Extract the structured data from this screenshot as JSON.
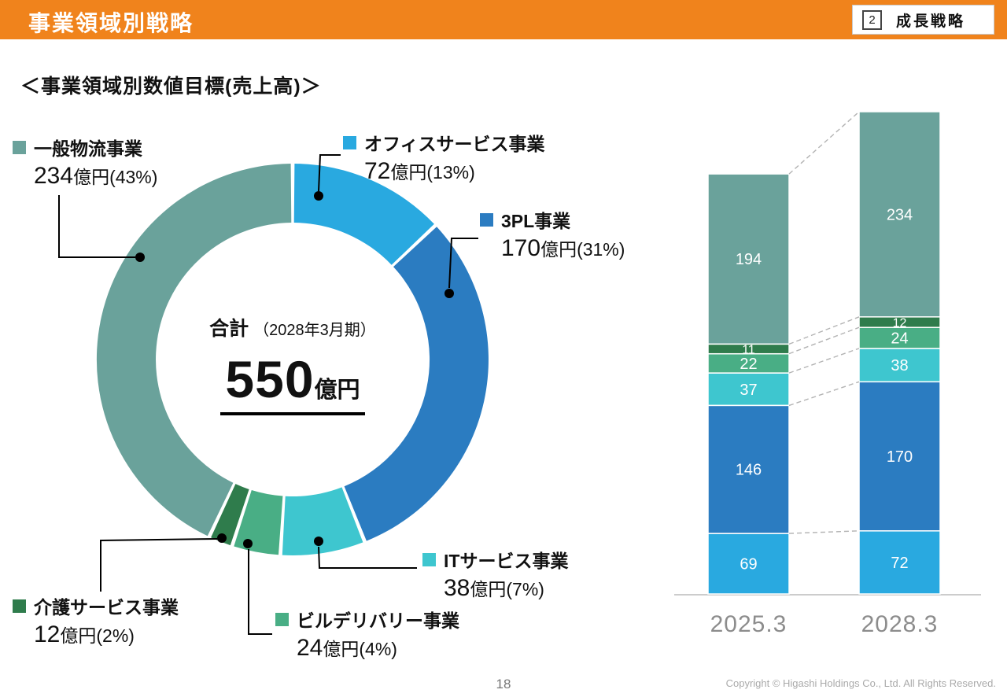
{
  "palette": {
    "office": "#29A9E0",
    "pl3": "#2B7CC1",
    "it": "#3EC6CF",
    "building": "#49AE85",
    "care": "#2F7C4C",
    "general": "#6AA29B",
    "accent_orange": "#F0831C"
  },
  "header": {
    "title": "事業領域別戦略",
    "badge_number": "2",
    "badge_label": "成長戦略"
  },
  "subtitle": "＜事業領域別数値目標(売上高)＞",
  "donut_center": {
    "label": "合計",
    "sublabel": "（2028年3月期）",
    "value": "550",
    "unit": "億円"
  },
  "labels": {
    "general": {
      "name": "一般物流事業",
      "num": "234",
      "rest": "億円(43%)"
    },
    "office": {
      "name": "オフィスサービス事業",
      "num": "72",
      "rest": "億円(13%)"
    },
    "pl3": {
      "name": "3PL事業",
      "num": "170",
      "rest": "億円(31%)"
    },
    "it": {
      "name": "ITサービス事業",
      "num": "38",
      "rest": "億円(7%)"
    },
    "building": {
      "name": "ビルデリバリー事業",
      "num": "24",
      "rest": "億円(4%)"
    },
    "care": {
      "name": "介護サービス事業",
      "num": "12",
      "rest": "億円(2%)"
    }
  },
  "chart_data": [
    {
      "type": "pie",
      "subtype": "donut",
      "title": "事業領域別数値目標(売上高)",
      "unit": "億円",
      "total": 550,
      "fiscal_period": "2028年3月期",
      "start_angle_deg": 0,
      "clockwise": true,
      "segments": [
        {
          "key": "office",
          "label": "オフィスサービス事業",
          "value": 72,
          "pct": 13
        },
        {
          "key": "pl3",
          "label": "3PL事業",
          "value": 170,
          "pct": 31
        },
        {
          "key": "it",
          "label": "ITサービス事業",
          "value": 38,
          "pct": 7
        },
        {
          "key": "building",
          "label": "ビルデリバリー事業",
          "value": 24,
          "pct": 4
        },
        {
          "key": "care",
          "label": "介護サービス事業",
          "value": 12,
          "pct": 2
        },
        {
          "key": "general",
          "label": "一般物流事業",
          "value": 234,
          "pct": 43
        }
      ]
    },
    {
      "type": "bar",
      "stacked": true,
      "categories": [
        "2025.3",
        "2028.3"
      ],
      "series_order": "bottom_to_top",
      "series": [
        {
          "key": "office",
          "name": "オフィスサービス事業",
          "values": [
            69,
            72
          ]
        },
        {
          "key": "pl3",
          "name": "3PL事業",
          "values": [
            146,
            170
          ]
        },
        {
          "key": "it",
          "name": "ITサービス事業",
          "values": [
            37,
            38
          ]
        },
        {
          "key": "building",
          "name": "ビルデリバリー事業",
          "values": [
            22,
            24
          ]
        },
        {
          "key": "care",
          "name": "介護サービス事業",
          "values": [
            11,
            12
          ]
        },
        {
          "key": "general",
          "name": "一般物流事業",
          "values": [
            194,
            234
          ]
        }
      ],
      "totals": [
        479,
        550
      ],
      "ylim": [
        0,
        550
      ],
      "value_labels": true,
      "connectors": "dashed",
      "unit": "億円"
    }
  ],
  "footer": {
    "page_number": "18",
    "copyright": "Copyright © Higashi Holdings Co., Ltd. All Rights Reserved."
  }
}
